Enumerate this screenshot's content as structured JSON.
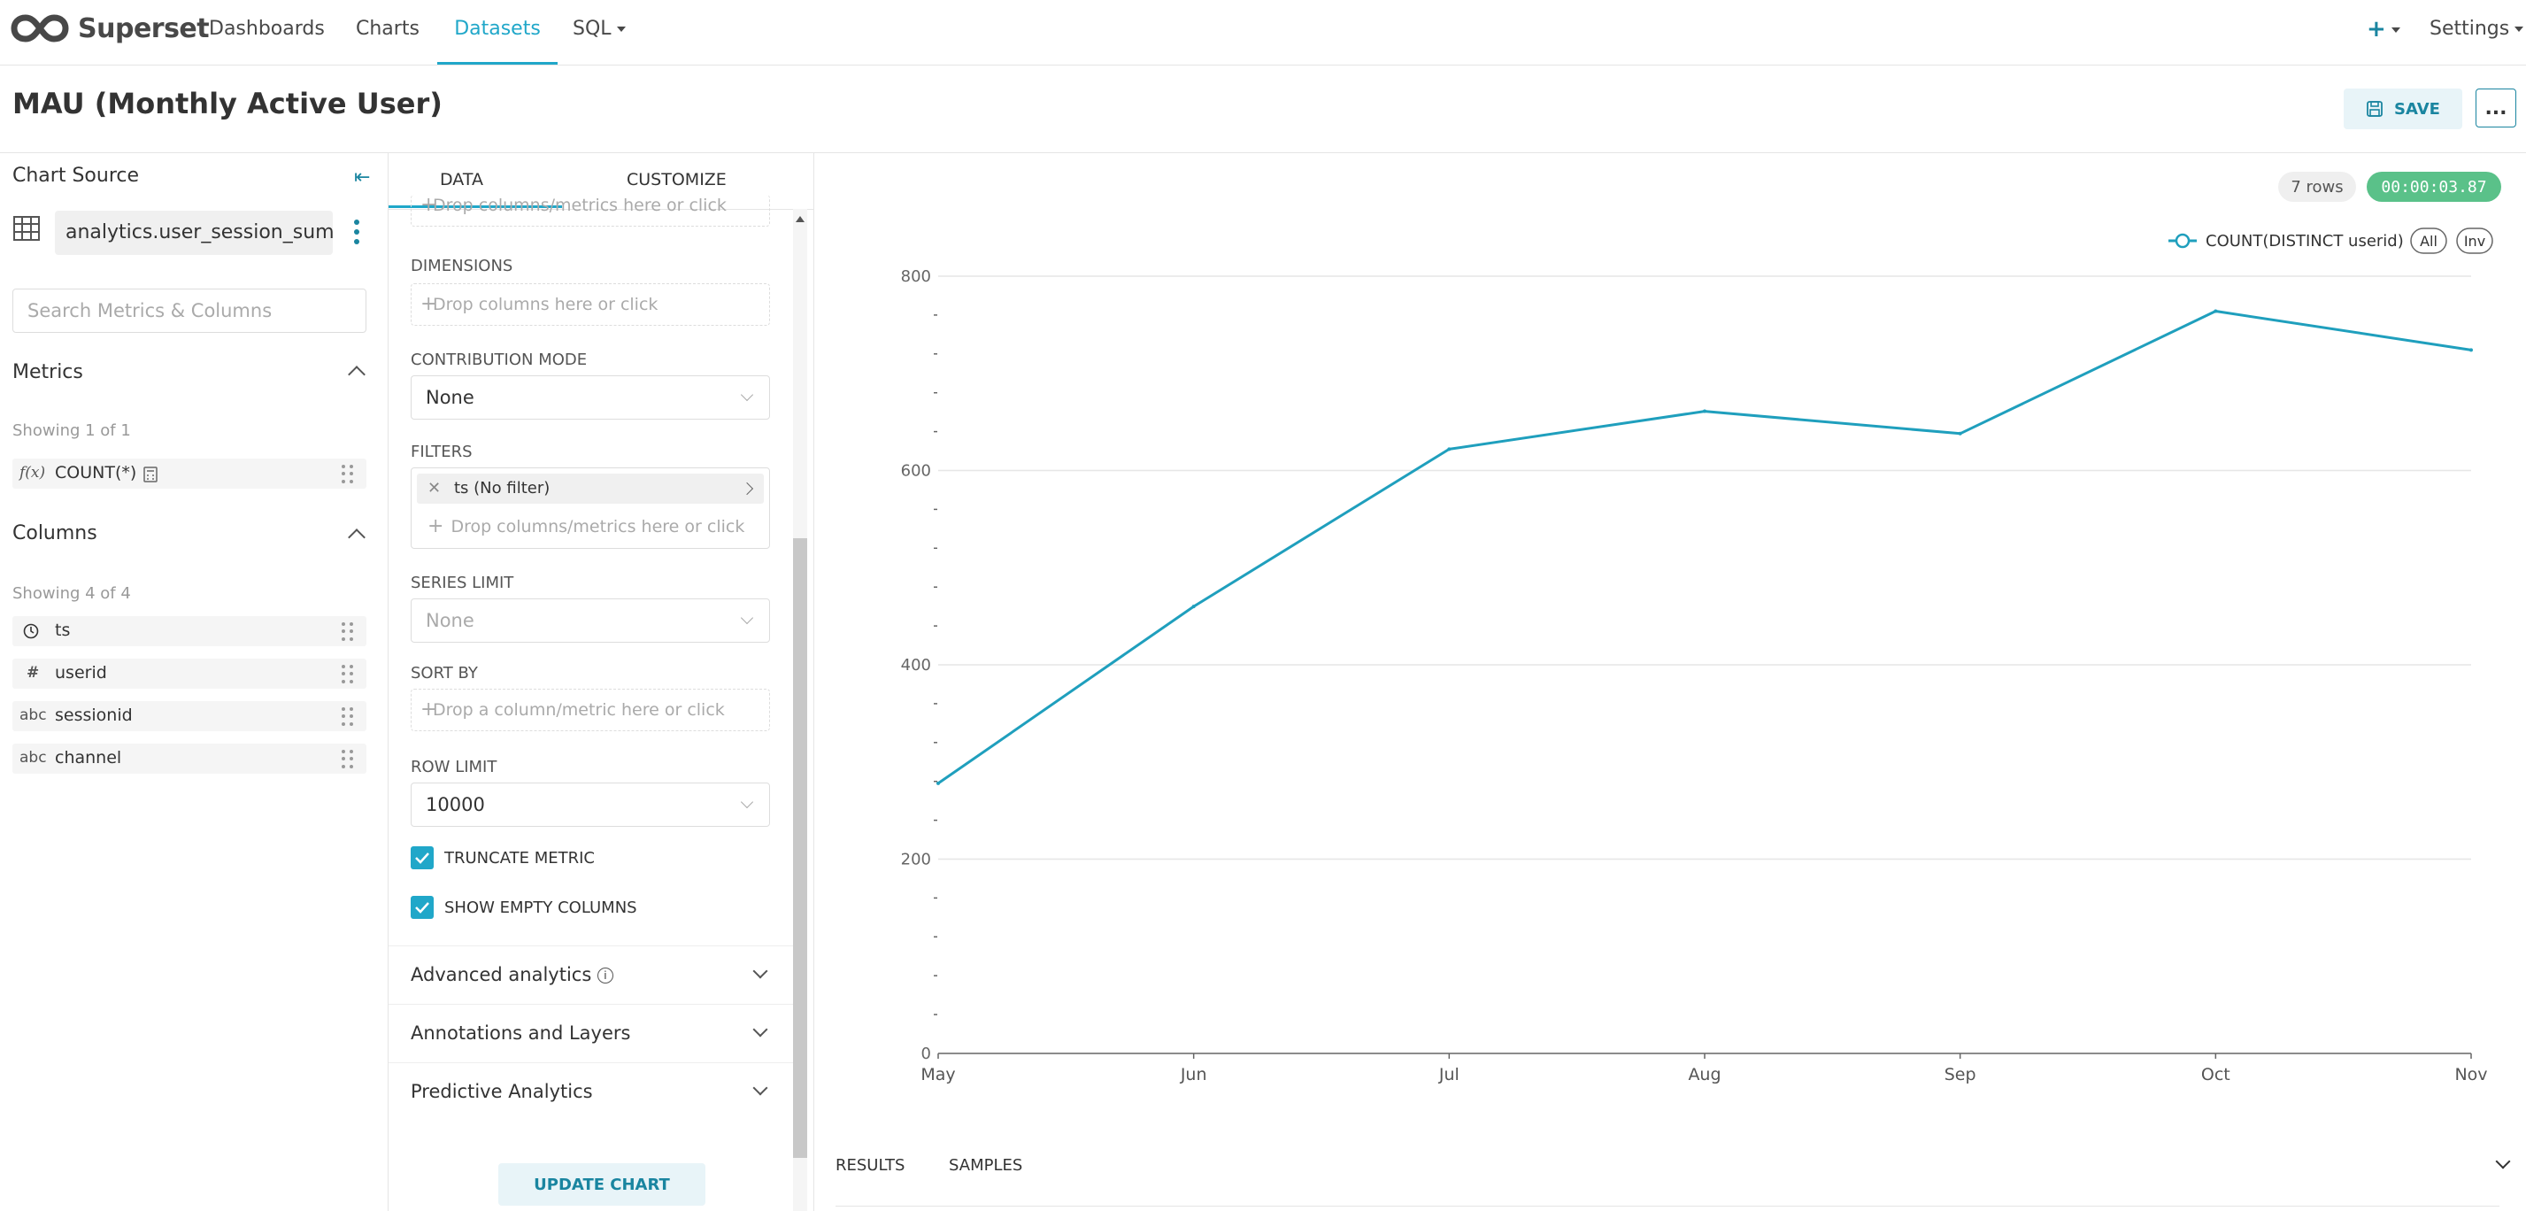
{
  "nav": {
    "brand": "Superset",
    "items": [
      {
        "label": "Dashboards",
        "active": false
      },
      {
        "label": "Charts",
        "active": false
      },
      {
        "label": "Datasets",
        "active": true
      },
      {
        "label": "SQL",
        "active": false
      }
    ],
    "settings_label": "Settings",
    "accent_color": "#20a7c9"
  },
  "header": {
    "title": "MAU (Monthly Active User)",
    "save_label": "SAVE",
    "more_label": "..."
  },
  "datasource": {
    "panel_title": "Chart Source",
    "dataset_name": "analytics.user_session_sum...",
    "search_placeholder": "Search Metrics & Columns",
    "metrics": {
      "title": "Metrics",
      "showing": "Showing 1 of 1",
      "items": [
        {
          "type": "f(x)",
          "label": "COUNT(*)"
        }
      ]
    },
    "columns": {
      "title": "Columns",
      "showing": "Showing 4 of 4",
      "items": [
        {
          "type": "clock-icon",
          "label": "ts"
        },
        {
          "type": "#",
          "label": "userid"
        },
        {
          "type": "abc",
          "label": "sessionid"
        },
        {
          "type": "abc",
          "label": "channel"
        }
      ]
    }
  },
  "controls": {
    "tabs": [
      "DATA",
      "CUSTOMIZE"
    ],
    "top_drop_text": "Drop columns/metrics here or click",
    "dimensions": {
      "label": "DIMENSIONS",
      "drop_text": "Drop columns here or click"
    },
    "contribution_mode": {
      "label": "CONTRIBUTION MODE",
      "value": "None"
    },
    "filters": {
      "label": "FILTERS",
      "pill": "ts (No filter)",
      "drop_text": "Drop columns/metrics here or click"
    },
    "series_limit": {
      "label": "SERIES LIMIT",
      "value": "None"
    },
    "sort_by": {
      "label": "SORT BY",
      "drop_text": "Drop a column/metric here or click"
    },
    "row_limit": {
      "label": "ROW LIMIT",
      "value": "10000"
    },
    "truncate_metric": {
      "label": "TRUNCATE METRIC",
      "checked": true
    },
    "show_empty_columns": {
      "label": "SHOW EMPTY COLUMNS",
      "checked": true
    },
    "sections": [
      "Advanced analytics",
      "Annotations and Layers",
      "Predictive Analytics"
    ],
    "update_label": "UPDATE CHART"
  },
  "results": {
    "rows_badge": "7 rows",
    "timer": "00:00:03.87",
    "tabs": [
      "RESULTS",
      "SAMPLES"
    ]
  },
  "chart_data": {
    "type": "line",
    "title": "",
    "xlabel": "",
    "ylabel": "",
    "categories": [
      "May",
      "Jun",
      "Jul",
      "Aug",
      "Sep",
      "Oct",
      "Nov"
    ],
    "series": [
      {
        "name": "COUNT(DISTINCT userid)",
        "values": [
          278,
          460,
          622,
          661,
          638,
          764,
          724
        ],
        "color": "#1f9fbd"
      }
    ],
    "legend_controls": [
      "All",
      "Inv"
    ],
    "y_ticks": [
      0,
      200,
      400,
      600,
      800
    ],
    "ylim": [
      0,
      800
    ],
    "grid": true,
    "legend_position": "top-right"
  }
}
